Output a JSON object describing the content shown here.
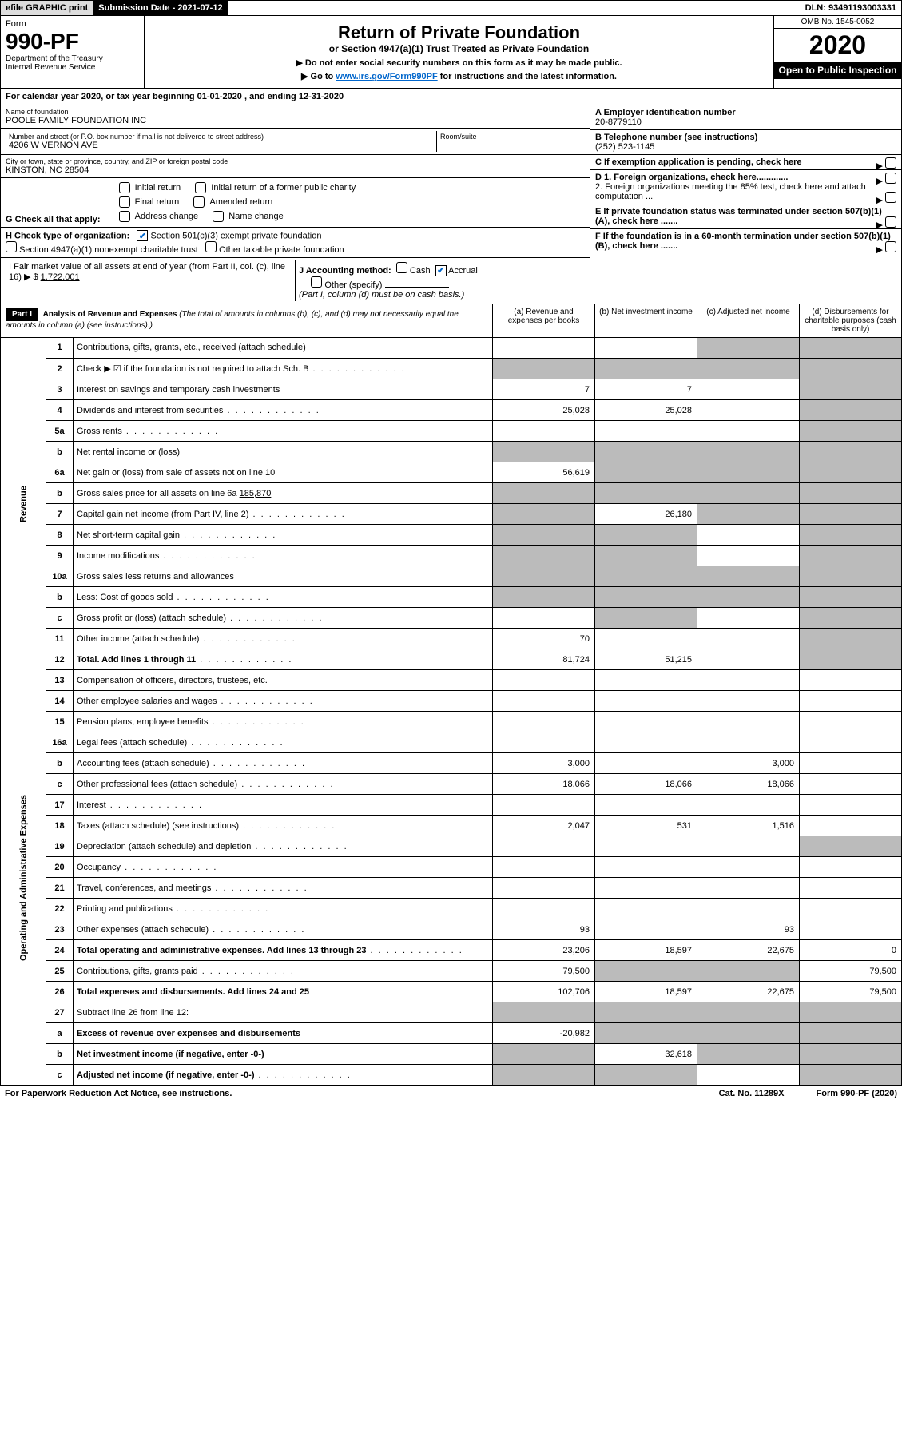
{
  "topbar": {
    "efile": "efile GRAPHIC print",
    "subdate_lbl": "Submission Date - 2021-07-12",
    "dln": "DLN: 93491193003331"
  },
  "header": {
    "form_word": "Form",
    "form_num": "990-PF",
    "dept": "Department of the Treasury\nInternal Revenue Service",
    "title": "Return of Private Foundation",
    "subtitle": "or Section 4947(a)(1) Trust Treated as Private Foundation",
    "note1": "▶ Do not enter social security numbers on this form as it may be made public.",
    "note2_pre": "▶ Go to ",
    "note2_link": "www.irs.gov/Form990PF",
    "note2_post": " for instructions and the latest information.",
    "omb": "OMB No. 1545-0052",
    "year": "2020",
    "open": "Open to Public Inspection"
  },
  "calyear": {
    "text_pre": "For calendar year 2020, or tax year beginning ",
    "begin": "01-01-2020",
    "mid": " , and ending ",
    "end": "12-31-2020"
  },
  "info": {
    "name_lbl": "Name of foundation",
    "name": "POOLE FAMILY FOUNDATION INC",
    "addr_lbl": "Number and street (or P.O. box number if mail is not delivered to street address)",
    "addr": "4206 W VERNON AVE",
    "room_lbl": "Room/suite",
    "city_lbl": "City or town, state or province, country, and ZIP or foreign postal code",
    "city": "KINSTON, NC  28504",
    "A_lbl": "A Employer identification number",
    "A_val": "20-8779110",
    "B_lbl": "B Telephone number (see instructions)",
    "B_val": "(252) 523-1145",
    "C_lbl": "C If exemption application is pending, check here",
    "D1": "D 1. Foreign organizations, check here.............",
    "D2": "2. Foreign organizations meeting the 85% test, check here and attach computation ...",
    "E_lbl": "E  If private foundation status was terminated under section 507(b)(1)(A), check here .......",
    "F_lbl": "F  If the foundation is in a 60-month termination under section 507(b)(1)(B), check here .......",
    "G_lbl": "G Check all that apply:",
    "G_opts": [
      "Initial return",
      "Initial return of a former public charity",
      "Final return",
      "Amended return",
      "Address change",
      "Name change"
    ],
    "H_lbl": "H Check type of organization:",
    "H1": "Section 501(c)(3) exempt private foundation",
    "H2": "Section 4947(a)(1) nonexempt charitable trust",
    "H3": "Other taxable private foundation",
    "I_lbl": "I Fair market value of all assets at end of year (from Part II, col. (c), line 16) ▶ $ ",
    "I_val": "1,722,001",
    "J_lbl": "J Accounting method:",
    "J_cash": "Cash",
    "J_accrual": "Accrual",
    "J_other": "Other (specify)",
    "J_note": "(Part I, column (d) must be on cash basis.)"
  },
  "part1": {
    "hdr": "Part I",
    "title": "Analysis of Revenue and Expenses",
    "note": "(The total of amounts in columns (b), (c), and (d) may not necessarily equal the amounts in column (a) (see instructions).)",
    "col_a": "(a)   Revenue and expenses per books",
    "col_b": "(b)  Net investment income",
    "col_c": "(c)  Adjusted net income",
    "col_d": "(d)  Disbursements for charitable purposes (cash basis only)"
  },
  "sidelabels": {
    "revenue": "Revenue",
    "expenses": "Operating and Administrative Expenses"
  },
  "rows": [
    {
      "n": "1",
      "d": "Contributions, gifts, grants, etc., received (attach schedule)",
      "a": "",
      "b": "",
      "c": "sh",
      "dcol": "sh"
    },
    {
      "n": "2",
      "d": "Check ▶ ☑ if the foundation is not required to attach Sch. B",
      "dots": true,
      "a": "sh",
      "b": "sh",
      "c": "sh",
      "dcol": "sh"
    },
    {
      "n": "3",
      "d": "Interest on savings and temporary cash investments",
      "a": "7",
      "b": "7",
      "c": "",
      "dcol": "sh"
    },
    {
      "n": "4",
      "d": "Dividends and interest from securities",
      "dots": true,
      "a": "25,028",
      "b": "25,028",
      "c": "",
      "dcol": "sh"
    },
    {
      "n": "5a",
      "d": "Gross rents",
      "dots": true,
      "a": "",
      "b": "",
      "c": "",
      "dcol": "sh"
    },
    {
      "n": "b",
      "d": "Net rental income or (loss)",
      "a": "sh",
      "b": "sh",
      "c": "sh",
      "dcol": "sh"
    },
    {
      "n": "6a",
      "d": "Net gain or (loss) from sale of assets not on line 10",
      "a": "56,619",
      "b": "sh",
      "c": "sh",
      "dcol": "sh"
    },
    {
      "n": "b",
      "d": "Gross sales price for all assets on line 6a ",
      "val": "185,870",
      "a": "sh",
      "b": "sh",
      "c": "sh",
      "dcol": "sh"
    },
    {
      "n": "7",
      "d": "Capital gain net income (from Part IV, line 2)",
      "dots": true,
      "a": "sh",
      "b": "26,180",
      "c": "sh",
      "dcol": "sh"
    },
    {
      "n": "8",
      "d": "Net short-term capital gain",
      "dots": true,
      "a": "sh",
      "b": "sh",
      "c": "",
      "dcol": "sh"
    },
    {
      "n": "9",
      "d": "Income modifications",
      "dots": true,
      "a": "sh",
      "b": "sh",
      "c": "",
      "dcol": "sh"
    },
    {
      "n": "10a",
      "d": "Gross sales less returns and allowances",
      "a": "sh",
      "b": "sh",
      "c": "sh",
      "dcol": "sh"
    },
    {
      "n": "b",
      "d": "Less: Cost of goods sold",
      "dots": true,
      "a": "sh",
      "b": "sh",
      "c": "sh",
      "dcol": "sh"
    },
    {
      "n": "c",
      "d": "Gross profit or (loss) (attach schedule)",
      "dots": true,
      "a": "",
      "b": "sh",
      "c": "",
      "dcol": "sh"
    },
    {
      "n": "11",
      "d": "Other income (attach schedule)",
      "dots": true,
      "a": "70",
      "b": "",
      "c": "",
      "dcol": "sh"
    },
    {
      "n": "12",
      "d": "Total. Add lines 1 through 11",
      "bold": true,
      "dots": true,
      "a": "81,724",
      "b": "51,215",
      "c": "",
      "dcol": "sh"
    },
    {
      "n": "13",
      "d": "Compensation of officers, directors, trustees, etc.",
      "a": "",
      "b": "",
      "c": "",
      "dcol": ""
    },
    {
      "n": "14",
      "d": "Other employee salaries and wages",
      "dots": true,
      "a": "",
      "b": "",
      "c": "",
      "dcol": ""
    },
    {
      "n": "15",
      "d": "Pension plans, employee benefits",
      "dots": true,
      "a": "",
      "b": "",
      "c": "",
      "dcol": ""
    },
    {
      "n": "16a",
      "d": "Legal fees (attach schedule)",
      "dots": true,
      "a": "",
      "b": "",
      "c": "",
      "dcol": ""
    },
    {
      "n": "b",
      "d": "Accounting fees (attach schedule)",
      "dots": true,
      "a": "3,000",
      "b": "",
      "c": "3,000",
      "dcol": ""
    },
    {
      "n": "c",
      "d": "Other professional fees (attach schedule)",
      "dots": true,
      "a": "18,066",
      "b": "18,066",
      "c": "18,066",
      "dcol": ""
    },
    {
      "n": "17",
      "d": "Interest",
      "dots": true,
      "a": "",
      "b": "",
      "c": "",
      "dcol": ""
    },
    {
      "n": "18",
      "d": "Taxes (attach schedule) (see instructions)",
      "dots": true,
      "a": "2,047",
      "b": "531",
      "c": "1,516",
      "dcol": ""
    },
    {
      "n": "19",
      "d": "Depreciation (attach schedule) and depletion",
      "dots": true,
      "a": "",
      "b": "",
      "c": "",
      "dcol": "sh"
    },
    {
      "n": "20",
      "d": "Occupancy",
      "dots": true,
      "a": "",
      "b": "",
      "c": "",
      "dcol": ""
    },
    {
      "n": "21",
      "d": "Travel, conferences, and meetings",
      "dots": true,
      "a": "",
      "b": "",
      "c": "",
      "dcol": ""
    },
    {
      "n": "22",
      "d": "Printing and publications",
      "dots": true,
      "a": "",
      "b": "",
      "c": "",
      "dcol": ""
    },
    {
      "n": "23",
      "d": "Other expenses (attach schedule)",
      "dots": true,
      "a": "93",
      "b": "",
      "c": "93",
      "dcol": ""
    },
    {
      "n": "24",
      "d": "Total operating and administrative expenses. Add lines 13 through 23",
      "bold": true,
      "dots": true,
      "a": "23,206",
      "b": "18,597",
      "c": "22,675",
      "dcol": "0"
    },
    {
      "n": "25",
      "d": "Contributions, gifts, grants paid",
      "dots": true,
      "a": "79,500",
      "b": "sh",
      "c": "sh",
      "dcol": "79,500"
    },
    {
      "n": "26",
      "d": "Total expenses and disbursements. Add lines 24 and 25",
      "bold": true,
      "a": "102,706",
      "b": "18,597",
      "c": "22,675",
      "dcol": "79,500"
    },
    {
      "n": "27",
      "d": "Subtract line 26 from line 12:",
      "a": "sh",
      "b": "sh",
      "c": "sh",
      "dcol": "sh"
    },
    {
      "n": "a",
      "d": "Excess of revenue over expenses and disbursements",
      "bold": true,
      "a": "-20,982",
      "b": "sh",
      "c": "sh",
      "dcol": "sh"
    },
    {
      "n": "b",
      "d": "Net investment income (if negative, enter -0-)",
      "bold": true,
      "a": "sh",
      "b": "32,618",
      "c": "sh",
      "dcol": "sh"
    },
    {
      "n": "c",
      "d": "Adjusted net income (if negative, enter -0-)",
      "bold": true,
      "dots": true,
      "a": "sh",
      "b": "sh",
      "c": "",
      "dcol": "sh"
    }
  ],
  "footer": {
    "left": "For Paperwork Reduction Act Notice, see instructions.",
    "mid": "Cat. No. 11289X",
    "right": "Form 990-PF (2020)"
  },
  "colors": {
    "shade": "#bfbfbf",
    "link": "#0066cc",
    "check": "#0066cc"
  }
}
